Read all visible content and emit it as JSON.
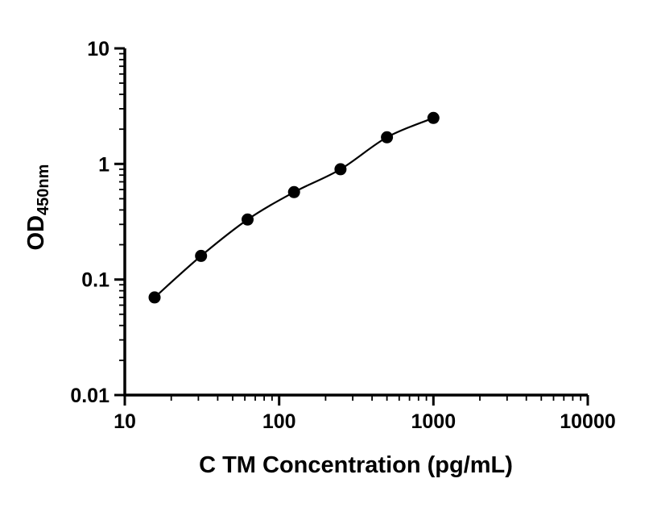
{
  "chart_data": {
    "type": "scatter",
    "title": "",
    "xlabel": "C TM Concentration (pg/mL)",
    "ylabel_main": "OD",
    "ylabel_sub": "450nm",
    "xscale": "log",
    "yscale": "log",
    "xlim": [
      10,
      10000
    ],
    "ylim": [
      0.01,
      10
    ],
    "x_ticks": [
      10,
      100,
      1000,
      10000
    ],
    "x_tick_labels": [
      "10",
      "100",
      "1000",
      "10000"
    ],
    "y_ticks": [
      0.01,
      0.1,
      1,
      10
    ],
    "y_tick_labels": [
      "0.01",
      "0.1",
      "1",
      "10"
    ],
    "x": [
      15.6,
      31.2,
      62.5,
      125,
      250,
      500,
      1000
    ],
    "y": [
      0.07,
      0.16,
      0.33,
      0.57,
      0.9,
      1.7,
      2.5
    ],
    "grid": false,
    "legend": "none",
    "marker_color": "#000000",
    "line_color": "#000000",
    "axis_color": "#000000",
    "background_color": "#ffffff"
  }
}
